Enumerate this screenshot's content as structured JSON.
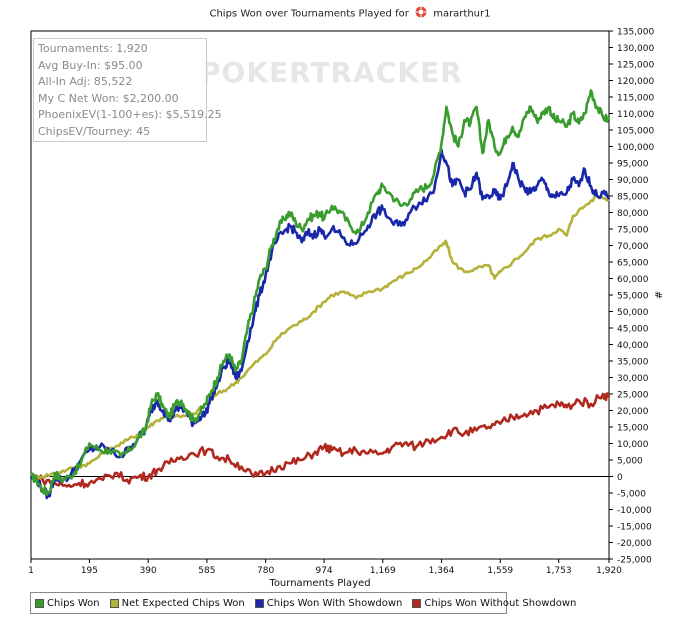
{
  "title_left": "Chips Won over Tournaments Played for",
  "title_player": "mararthur1",
  "watermark": "POKERTRACKER",
  "stats": [
    "Tournaments: 1,920",
    "Avg Buy-In: $95.00",
    "All-In Adj: 85,522",
    "My C Net Won: $2,200.00",
    "PhoenixEV(1-100+es): $5,519.25",
    "ChipsEV/Tourney: 45"
  ],
  "colors": {
    "chips_won": "#3a9c2e",
    "net_expected": "#b5b23a",
    "with_showdown": "#1a27a8",
    "without_showdown": "#b0291e"
  },
  "chart_data": {
    "type": "line",
    "title": "Chips Won over Tournaments Played for mararthur1",
    "xlabel": "Tournaments Played",
    "ylabel": "#",
    "xlim": [
      1,
      1920
    ],
    "ylim": [
      -25000,
      135000
    ],
    "x_ticks": [
      "1",
      "195",
      "390",
      "585",
      "780",
      "974",
      "1,169",
      "1,364",
      "1,559",
      "1,753",
      "1,920"
    ],
    "x_tick_values": [
      1,
      195,
      390,
      585,
      780,
      974,
      1169,
      1364,
      1559,
      1753,
      1920
    ],
    "y_ticks": [
      "135,000",
      "130,000",
      "125,000",
      "120,000",
      "115,000",
      "110,000",
      "105,000",
      "100,000",
      "95,000",
      "90,000",
      "85,000",
      "80,000",
      "75,000",
      "70,000",
      "65,000",
      "60,000",
      "55,000",
      "50,000",
      "45,000",
      "40,000",
      "35,000",
      "30,000",
      "25,000",
      "20,000",
      "15,000",
      "10,000",
      "5,000",
      "0",
      "-5,000",
      "-10,000",
      "-15,000",
      "-20,000",
      "-25,000"
    ],
    "y_tick_values": [
      135000,
      130000,
      125000,
      120000,
      115000,
      110000,
      105000,
      100000,
      95000,
      90000,
      85000,
      80000,
      75000,
      70000,
      65000,
      60000,
      55000,
      50000,
      45000,
      40000,
      35000,
      30000,
      25000,
      20000,
      15000,
      10000,
      5000,
      0,
      -5000,
      -10000,
      -15000,
      -20000,
      -25000
    ],
    "legend_position": "bottom",
    "series": [
      {
        "name": "Chips Won",
        "x": [
          1,
          20,
          40,
          60,
          80,
          100,
          130,
          160,
          195,
          230,
          260,
          300,
          330,
          360,
          380,
          400,
          420,
          440,
          460,
          480,
          500,
          520,
          540,
          560,
          580,
          600,
          620,
          640,
          660,
          680,
          700,
          720,
          740,
          760,
          780,
          800,
          820,
          840,
          860,
          880,
          900,
          920,
          940,
          960,
          974,
          1000,
          1030,
          1060,
          1090,
          1120,
          1150,
          1169,
          1200,
          1230,
          1260,
          1290,
          1320,
          1340,
          1364,
          1380,
          1400,
          1420,
          1440,
          1460,
          1480,
          1500,
          1520,
          1540,
          1559,
          1580,
          1600,
          1620,
          1640,
          1660,
          1680,
          1700,
          1720,
          1740,
          1753,
          1780,
          1800,
          1820,
          1840,
          1860,
          1880,
          1900,
          1920
        ],
        "values": [
          0,
          -1000,
          -4000,
          -5000,
          1000,
          -1000,
          0,
          3000,
          10000,
          8000,
          8000,
          6000,
          8000,
          12000,
          14000,
          22000,
          25000,
          21000,
          18000,
          22000,
          23000,
          20000,
          17000,
          19000,
          22000,
          26000,
          30000,
          35000,
          37000,
          32000,
          35000,
          45000,
          52000,
          60000,
          63000,
          70000,
          75000,
          78000,
          80000,
          77000,
          75000,
          78000,
          79000,
          80000,
          78000,
          82000,
          80000,
          76000,
          74000,
          80000,
          86000,
          88000,
          85000,
          82000,
          84000,
          87000,
          88000,
          92000,
          101000,
          112000,
          104000,
          100000,
          108000,
          107000,
          112000,
          98000,
          108000,
          100000,
          98000,
          103000,
          106000,
          103000,
          109000,
          112000,
          108000,
          110000,
          112000,
          108000,
          108000,
          106000,
          110000,
          107000,
          110000,
          117000,
          112000,
          109000,
          108000
        ]
      },
      {
        "name": "Net Expected Chips Won",
        "x": [
          1,
          40,
          80,
          120,
          160,
          195,
          240,
          280,
          320,
          360,
          390,
          420,
          460,
          500,
          540,
          585,
          620,
          660,
          700,
          740,
          780,
          820,
          860,
          900,
          940,
          974,
          1000,
          1040,
          1080,
          1120,
          1169,
          1200,
          1240,
          1280,
          1320,
          1364,
          1380,
          1400,
          1440,
          1480,
          1520,
          1540,
          1559,
          1600,
          1640,
          1680,
          1720,
          1753,
          1780,
          1800,
          1840,
          1880,
          1920
        ],
        "values": [
          0,
          0,
          1000,
          2000,
          3000,
          4000,
          7000,
          9000,
          11000,
          13000,
          15000,
          17000,
          19000,
          18000,
          19000,
          22000,
          25000,
          27000,
          30000,
          34000,
          37000,
          42000,
          45000,
          47000,
          50000,
          53000,
          55000,
          56000,
          54000,
          56000,
          57000,
          59000,
          61000,
          63000,
          66000,
          70000,
          71000,
          65000,
          62000,
          63000,
          64000,
          60000,
          62000,
          65000,
          68000,
          72000,
          73000,
          75000,
          73000,
          79000,
          82000,
          85000,
          84000
        ]
      },
      {
        "name": "Chips Won With Showdown",
        "x": [
          1,
          20,
          40,
          60,
          80,
          100,
          130,
          160,
          195,
          230,
          260,
          300,
          330,
          360,
          380,
          400,
          420,
          440,
          460,
          480,
          500,
          520,
          540,
          560,
          580,
          600,
          620,
          640,
          660,
          680,
          700,
          720,
          740,
          760,
          780,
          800,
          820,
          840,
          860,
          880,
          900,
          920,
          940,
          960,
          974,
          1000,
          1030,
          1060,
          1090,
          1120,
          1150,
          1169,
          1200,
          1230,
          1260,
          1290,
          1320,
          1340,
          1364,
          1380,
          1400,
          1420,
          1440,
          1460,
          1480,
          1500,
          1520,
          1540,
          1559,
          1580,
          1600,
          1620,
          1640,
          1660,
          1680,
          1700,
          1720,
          1740,
          1753,
          1780,
          1800,
          1820,
          1840,
          1860,
          1880,
          1900,
          1920
        ],
        "values": [
          0,
          -1000,
          -4000,
          -6000,
          0,
          -1000,
          0,
          4000,
          8000,
          9000,
          8000,
          6000,
          9000,
          12000,
          14000,
          20000,
          23000,
          20000,
          17000,
          20000,
          21000,
          19000,
          16000,
          18000,
          19000,
          24000,
          28000,
          33000,
          35000,
          30000,
          32000,
          41000,
          48000,
          55000,
          61000,
          68000,
          72000,
          74000,
          76000,
          74000,
          71000,
          74000,
          73000,
          75000,
          73000,
          75000,
          73000,
          70000,
          72000,
          76000,
          80000,
          81000,
          77000,
          76000,
          80000,
          83000,
          85000,
          87000,
          99000,
          95000,
          88000,
          90000,
          86000,
          87000,
          92000,
          84000,
          85000,
          86000,
          84000,
          88000,
          95000,
          90000,
          87000,
          86000,
          88000,
          90000,
          86000,
          85000,
          85000,
          86000,
          90000,
          88000,
          93000,
          88000,
          85000,
          86000,
          84000
        ]
      },
      {
        "name": "Chips Won Without Showdown",
        "x": [
          1,
          40,
          80,
          120,
          160,
          195,
          240,
          280,
          320,
          360,
          390,
          420,
          460,
          500,
          540,
          585,
          620,
          660,
          700,
          740,
          780,
          820,
          860,
          900,
          940,
          974,
          1000,
          1040,
          1080,
          1120,
          1169,
          1200,
          1240,
          1280,
          1320,
          1364,
          1400,
          1440,
          1480,
          1520,
          1559,
          1600,
          1640,
          1680,
          1720,
          1753,
          1780,
          1820,
          1860,
          1900,
          1920
        ],
        "values": [
          0,
          -1000,
          -2000,
          -3000,
          -2000,
          -2000,
          -1000,
          1000,
          -1000,
          0,
          0,
          2000,
          4000,
          6000,
          7000,
          8000,
          6000,
          5000,
          3000,
          0,
          1000,
          3000,
          4000,
          5000,
          7000,
          9000,
          8000,
          7000,
          8000,
          7000,
          7000,
          9000,
          10000,
          9000,
          11000,
          12000,
          14000,
          13000,
          14000,
          15000,
          16000,
          18000,
          19000,
          20000,
          21000,
          22000,
          21000,
          23000,
          22000,
          25000,
          24000
        ]
      }
    ]
  }
}
